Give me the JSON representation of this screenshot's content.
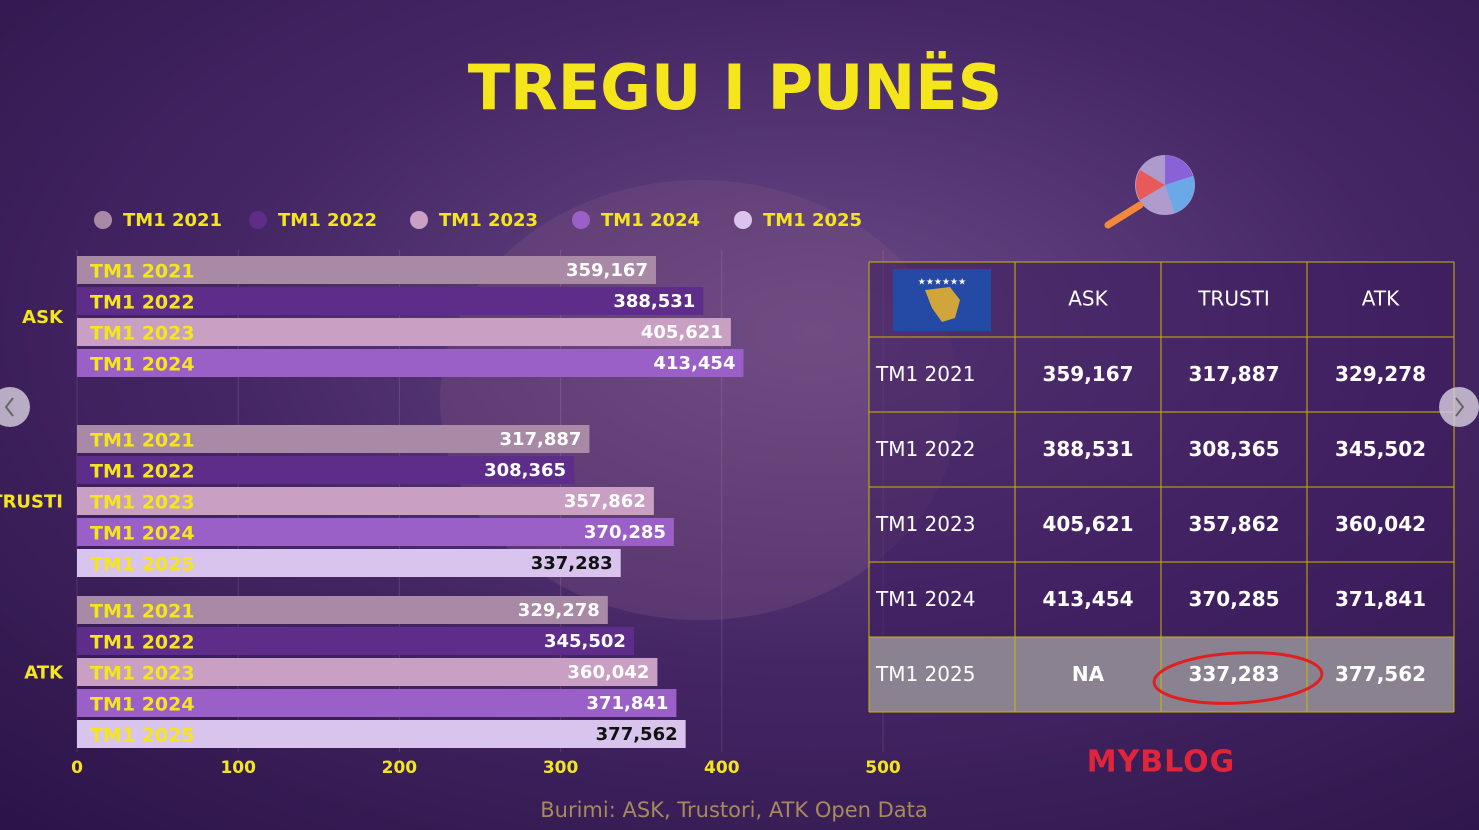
{
  "chart_data": {
    "type": "hbar-grouped",
    "title": "TREGU I PUNËS",
    "categories": [
      "ASK",
      "TRUSTI",
      "ATK"
    ],
    "series": [
      {
        "name": "TM1 2021",
        "color": "#a98aa6",
        "values": [
          359.167,
          317.887,
          329.278
        ],
        "value_labels": [
          "359,167",
          "317,887",
          "329,278"
        ]
      },
      {
        "name": "TM1 2022",
        "color": "#5e2d8a",
        "values": [
          388.531,
          308.365,
          345.502
        ],
        "value_labels": [
          "388,531",
          "308,365",
          "345,502"
        ]
      },
      {
        "name": "TM1 2023",
        "color": "#c9a0c4",
        "values": [
          405.621,
          357.862,
          360.042
        ],
        "value_labels": [
          "405,621",
          "357,862",
          "360,042"
        ]
      },
      {
        "name": "TM1 2024",
        "color": "#9b5fc8",
        "values": [
          413.454,
          370.285,
          371.841
        ],
        "value_labels": [
          "413,454",
          "370,285",
          "371,841"
        ]
      },
      {
        "name": "TM1 2025",
        "color": "#d8c4ec",
        "values": [
          null,
          337.283,
          377.562
        ],
        "value_labels": [
          null,
          "337,283",
          "377,562"
        ]
      }
    ],
    "xlim": [
      0,
      500
    ],
    "xticks": [
      0,
      100,
      200,
      300,
      400,
      500
    ],
    "grid": true
  },
  "table": {
    "header": [
      "ASK",
      "TRUSTI",
      "ATK"
    ],
    "rows": [
      [
        "TM1 2021",
        "359,167",
        "317,887",
        "329,278"
      ],
      [
        "TM1 2022",
        "388,531",
        "308,365",
        "345,502"
      ],
      [
        "TM1 2023",
        "405,621",
        "357,862",
        "360,042"
      ],
      [
        "TM1 2024",
        "413,454",
        "370,285",
        "371,841"
      ],
      [
        "TM1 2025",
        "NA",
        "337,283",
        "377,562"
      ]
    ]
  },
  "source": "Burimi: ASK, Trustori, ATK Open Data",
  "logo": "MYBLOG"
}
